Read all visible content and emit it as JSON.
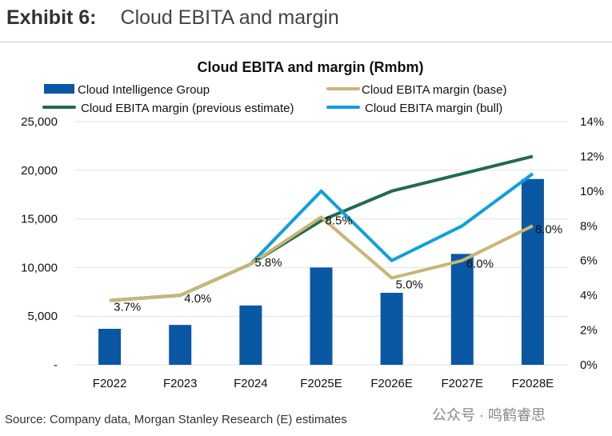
{
  "header": {
    "exhibit": "Exhibit 6:",
    "title": "Cloud EBITA and margin"
  },
  "source": "Source: Company data, Morgan Stanley Research (E) estimates",
  "watermark": "公众号 · 鸣鹤睿思",
  "chart_data": {
    "type": "bar",
    "title": "Cloud EBITA and margin (Rmbm)",
    "categories": [
      "F2022",
      "F2023",
      "F2024",
      "F2025E",
      "F2026E",
      "F2027E",
      "F2028E"
    ],
    "left_axis": {
      "range": [
        0,
        25000
      ],
      "ticks": [
        "-",
        "5,000",
        "10,000",
        "15,000",
        "20,000",
        "25,000"
      ]
    },
    "right_axis": {
      "range": [
        0,
        14
      ],
      "ticks": [
        "0%",
        "2%",
        "4%",
        "6%",
        "8%",
        "10%",
        "12%",
        "14%"
      ]
    },
    "bars": {
      "name": "Cloud Intelligence Group",
      "color": "#0a57a4",
      "values": [
        3700,
        4100,
        6100,
        10000,
        7400,
        11400,
        19100
      ]
    },
    "series": [
      {
        "name": "Cloud EBITA margin (previous estimate)",
        "color": "#1f6b52",
        "values": [
          3.7,
          4.0,
          5.8,
          8.3,
          10.0,
          11.0,
          12.0
        ]
      },
      {
        "name": "Cloud EBITA margin (bull)",
        "color": "#0ea0dc",
        "values": [
          3.7,
          4.0,
          5.8,
          10.0,
          6.0,
          8.0,
          11.0
        ]
      },
      {
        "name": "Cloud EBITA margin (base)",
        "color": "#c9b676",
        "values": [
          3.7,
          4.0,
          5.8,
          8.5,
          5.0,
          6.0,
          8.0
        ]
      }
    ],
    "data_labels": [
      "3.7%",
      "4.0%",
      "5.8%",
      "8.5%",
      "5.0%",
      "6.0%",
      "8.0%"
    ],
    "legend": [
      "Cloud Intelligence Group",
      "Cloud EBITA margin (base)",
      "Cloud EBITA margin (previous estimate)",
      "Cloud EBITA margin (bull)"
    ],
    "legend_placement": "top",
    "grid": true
  }
}
